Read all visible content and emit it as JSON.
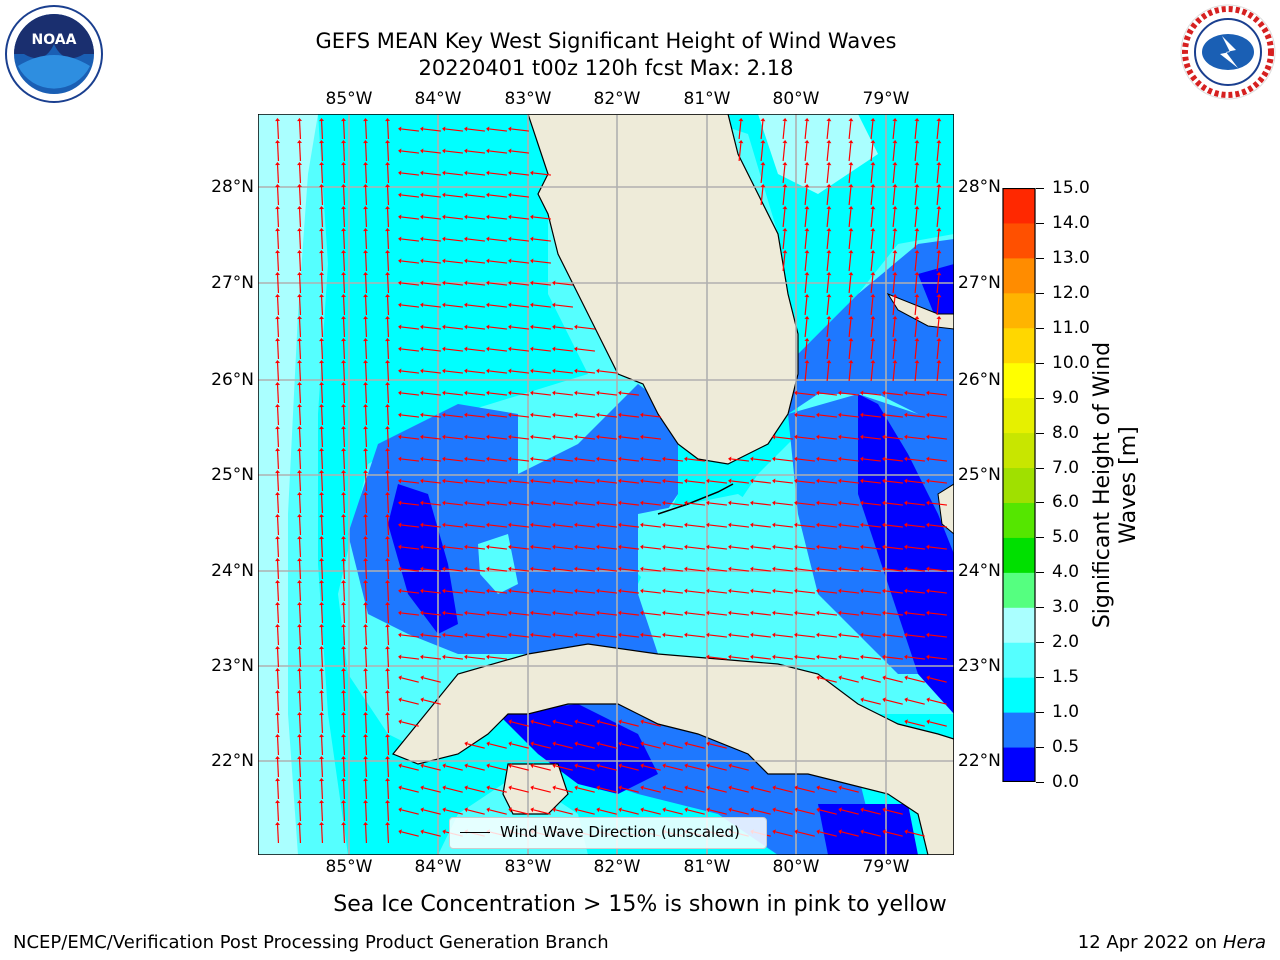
{
  "title_line1": "GEFS MEAN Key West Significant Height of Wind Waves",
  "title_line2": "20220401 t00z 120h fcst   Max: 2.18",
  "lon_labels": [
    "85°W",
    "84°W",
    "83°W",
    "82°W",
    "81°W",
    "80°W",
    "79°W"
  ],
  "lat_labels": [
    "28°N",
    "27°N",
    "26°N",
    "25°N",
    "24°N",
    "23°N",
    "22°N"
  ],
  "legend_label": "Wind Wave Direction (unscaled)",
  "colorbar": {
    "title_line1": "Significant Height of Wind",
    "title_line2": "Waves [m]",
    "ticks": [
      "0.0",
      "0.5",
      "1.0",
      "1.5",
      "2.0",
      "3.0",
      "4.0",
      "5.0",
      "6.0",
      "7.0",
      "8.0",
      "9.0",
      "10.0",
      "11.0",
      "12.0",
      "13.0",
      "14.0",
      "15.0"
    ],
    "colors": [
      "#0000ff",
      "#1e78ff",
      "#00ffff",
      "#55ffff",
      "#aaffff",
      "#55ff80",
      "#00e000",
      "#55e600",
      "#a0e000",
      "#c8e600",
      "#e6f000",
      "#ffff00",
      "#ffd700",
      "#ffb400",
      "#ff8c00",
      "#ff5000",
      "#ff2800",
      "#ff0000"
    ]
  },
  "ice_note": "Sea Ice Concentration > 15% is shown in pink to yellow",
  "footer_left": "NCEP/EMC/Verification Post Processing Product Generation Branch",
  "footer_right_date": "12 Apr 2022 on ",
  "footer_right_host": "Hera",
  "colors": {
    "land": "#eeebd9",
    "arrow": "#ff0000",
    "grid": "#b0b0b0"
  }
}
